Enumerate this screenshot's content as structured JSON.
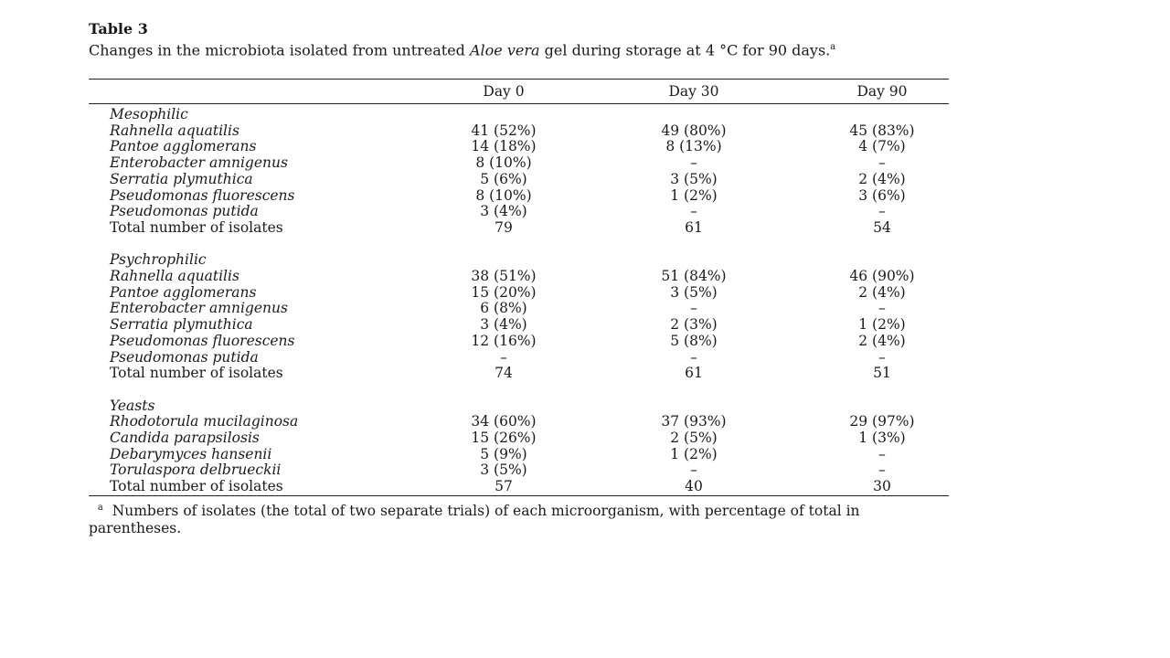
{
  "table": {
    "label": "Table 3",
    "caption_parts": [
      {
        "text": "Changes in the microbiota isolated from untreated ",
        "italic": false
      },
      {
        "text": "Aloe vera",
        "italic": true
      },
      {
        "text": " gel during storage at 4 °C for 90 days.",
        "italic": false
      },
      {
        "text": "a",
        "sup": true
      }
    ],
    "columns": [
      "Day 0",
      "Day 30",
      "Day 90"
    ],
    "groups": [
      {
        "name": "Mesophilic",
        "rows": [
          {
            "organism": "Rahnella aquatilis",
            "values": [
              "41 (52%)",
              "49 (80%)",
              "45 (83%)"
            ]
          },
          {
            "organism": "Pantoe agglomerans",
            "values": [
              "14 (18%)",
              "8 (13%)",
              "4 (7%)"
            ]
          },
          {
            "organism": "Enterobacter amnigenus",
            "values": [
              "8 (10%)",
              "–",
              "–"
            ]
          },
          {
            "organism": "Serratia plymuthica",
            "values": [
              "5 (6%)",
              "3 (5%)",
              "2 (4%)"
            ]
          },
          {
            "organism": "Pseudomonas fluorescens",
            "values": [
              "8 (10%)",
              "1 (2%)",
              "3 (6%)"
            ]
          },
          {
            "organism": "Pseudomonas putida",
            "values": [
              "3 (4%)",
              "–",
              "–"
            ]
          }
        ],
        "total_label": "Total number of isolates",
        "totals": [
          "79",
          "61",
          "54"
        ]
      },
      {
        "name": "Psychrophilic",
        "rows": [
          {
            "organism": "Rahnella aquatilis",
            "values": [
              "38 (51%)",
              "51 (84%)",
              "46 (90%)"
            ]
          },
          {
            "organism": "Pantoe agglomerans",
            "values": [
              "15 (20%)",
              "3 (5%)",
              "2 (4%)"
            ]
          },
          {
            "organism": "Enterobacter amnigenus",
            "values": [
              "6 (8%)",
              "–",
              "–"
            ]
          },
          {
            "organism": "Serratia plymuthica",
            "values": [
              "3 (4%)",
              "2 (3%)",
              "1 (2%)"
            ]
          },
          {
            "organism": "Pseudomonas fluorescens",
            "values": [
              "12 (16%)",
              "5 (8%)",
              "2 (4%)"
            ]
          },
          {
            "organism": "Pseudomonas putida",
            "values": [
              "–",
              "–",
              "–"
            ]
          }
        ],
        "total_label": "Total number of isolates",
        "totals": [
          "74",
          "61",
          "51"
        ]
      },
      {
        "name": "Yeasts",
        "rows": [
          {
            "organism": "Rhodotorula mucilaginosa",
            "values": [
              "34 (60%)",
              "37 (93%)",
              "29 (97%)"
            ]
          },
          {
            "organism": "Candida parapsilosis",
            "values": [
              "15 (26%)",
              "2 (5%)",
              "1 (3%)"
            ]
          },
          {
            "organism": "Debarymyces hansenii",
            "values": [
              "5 (9%)",
              "1 (2%)",
              "–"
            ]
          },
          {
            "organism": "Torulaspora delbrueckii",
            "values": [
              "3 (5%)",
              "–",
              "–"
            ]
          }
        ],
        "total_label": "Total number of isolates",
        "totals": [
          "57",
          "40",
          "30"
        ]
      }
    ],
    "footnote_mark": "a",
    "footnote": "Numbers of isolates (the total of two separate trials) of each microorganism, with percentage of total in parentheses."
  }
}
